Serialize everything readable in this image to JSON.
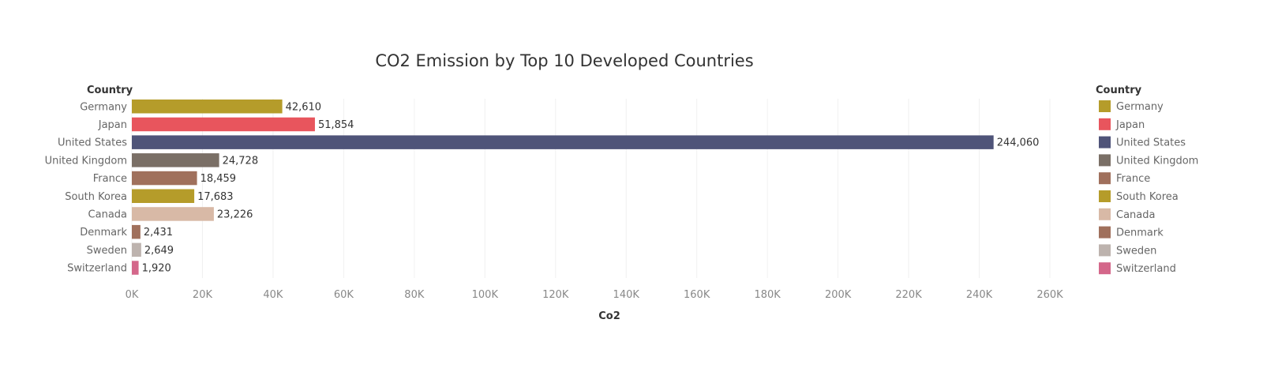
{
  "chart_data": {
    "type": "bar",
    "orientation": "horizontal",
    "title": "CO2 Emission by Top 10 Developed Countries",
    "xlabel": "Co2",
    "ylabel": "Country",
    "categories": [
      "Germany",
      "Japan",
      "United States",
      "United Kingdom",
      "France",
      "South Korea",
      "Canada",
      "Denmark",
      "Sweden",
      "Switzerland"
    ],
    "values": [
      42610,
      51854,
      244060,
      24728,
      18459,
      17683,
      23226,
      2431,
      2649,
      1920
    ],
    "value_labels": [
      "42,610",
      "51,854",
      "244,060",
      "24,728",
      "18,459",
      "17,683",
      "23,226",
      "2,431",
      "2,649",
      "1,920"
    ],
    "colors": [
      "#b59c2a",
      "#e8555d",
      "#4f5479",
      "#7a6f66",
      "#a0705c",
      "#b59c2a",
      "#d8b9a6",
      "#a0705c",
      "#bdb3ae",
      "#d4678a"
    ],
    "xlim": [
      0,
      260000
    ],
    "x_ticks": [
      0,
      20000,
      40000,
      60000,
      80000,
      100000,
      120000,
      140000,
      160000,
      180000,
      200000,
      220000,
      240000,
      260000
    ],
    "x_tick_labels": [
      "0K",
      "20K",
      "40K",
      "60K",
      "80K",
      "100K",
      "120K",
      "140K",
      "160K",
      "180K",
      "200K",
      "220K",
      "240K",
      "260K"
    ],
    "grid": true,
    "legend": {
      "title": "Country",
      "placement": "right",
      "entries": [
        "Germany",
        "Japan",
        "United States",
        "United Kingdom",
        "France",
        "South Korea",
        "Canada",
        "Denmark",
        "Sweden",
        "Switzerland"
      ]
    }
  }
}
